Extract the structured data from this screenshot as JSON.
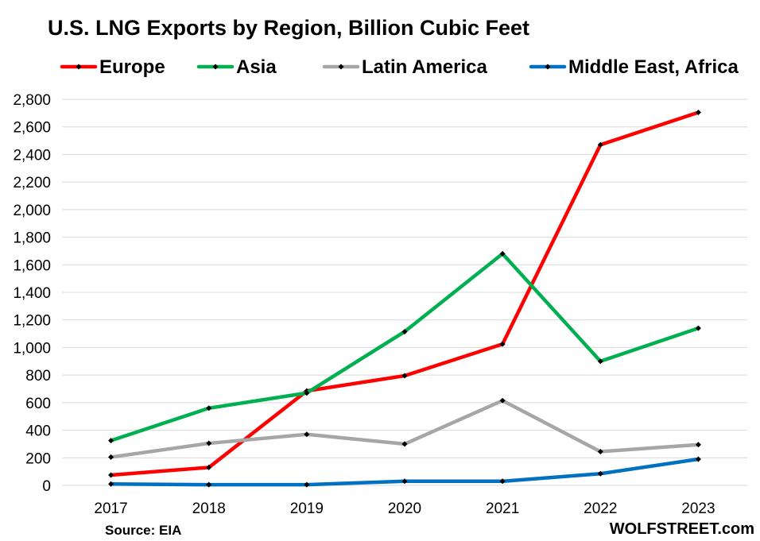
{
  "chart_data": {
    "type": "line",
    "title": "U.S. LNG Exports by Region, Billion Cubic Feet",
    "xlabel": "",
    "ylabel": "",
    "categories": [
      "2017",
      "2018",
      "2019",
      "2020",
      "2021",
      "2022",
      "2023"
    ],
    "ylim": [
      0,
      2800
    ],
    "yticks": [
      "0",
      "200",
      "400",
      "600",
      "800",
      "1,000",
      "1,200",
      "1,400",
      "1,600",
      "1,800",
      "2,000",
      "2,200",
      "2,400",
      "2,600",
      "2,800"
    ],
    "grid": true,
    "legend_position": "top",
    "series": [
      {
        "name": "Europe",
        "color": "#ff0000",
        "values": [
          75,
          130,
          685,
          795,
          1025,
          2470,
          2705
        ]
      },
      {
        "name": "Asia",
        "color": "#00b050",
        "values": [
          325,
          560,
          670,
          1115,
          1680,
          900,
          1140
        ]
      },
      {
        "name": "Latin America",
        "color": "#a6a6a6",
        "values": [
          205,
          305,
          370,
          300,
          615,
          245,
          295
        ]
      },
      {
        "name": "Middle East, Africa",
        "color": "#0070c0",
        "values": [
          10,
          5,
          5,
          30,
          30,
          85,
          190
        ]
      }
    ],
    "source": "Source: EIA",
    "brand": "WOLFSTREET.com"
  }
}
